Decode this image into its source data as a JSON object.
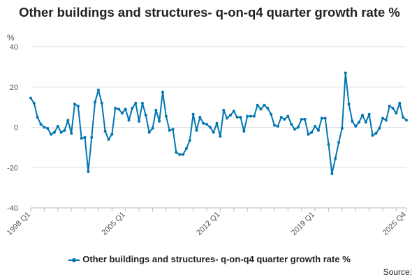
{
  "chart_data": {
    "type": "line",
    "title": "Other buildings and structures- q-on-q4 quarter growth rate %",
    "ylabel": "%",
    "xlabel": "",
    "ylim": [
      -40,
      40
    ],
    "yticks": [
      40,
      20,
      0,
      -20,
      -40
    ],
    "x_labels": [
      "1998 Q1",
      "2005 Q1",
      "2012 Q1",
      "2019 Q1",
      "2025 Q4"
    ],
    "grid": true,
    "legend_position": "bottom",
    "color": "#0076b1",
    "series": [
      {
        "name": "Other buildings and structures- q-on-q4 quarter growth rate %",
        "start": "1998 Q1",
        "values": [
          14.5,
          12,
          5,
          1.5,
          0,
          -0.5,
          -3.5,
          -2.5,
          0.5,
          -2.5,
          -1.5,
          3.5,
          -3,
          11.5,
          10.5,
          -5.5,
          -5,
          -22,
          -5,
          12.5,
          18.5,
          12,
          -2,
          -6,
          -3.5,
          9.5,
          9,
          7,
          9,
          3.5,
          9.5,
          12,
          3,
          12,
          6,
          -2.5,
          -0.5,
          8.5,
          3,
          17.5,
          5.5,
          -1.5,
          -1,
          -12.5,
          -13.5,
          -13.5,
          -10.5,
          -6.5,
          6.5,
          -1.5,
          5,
          2,
          1.5,
          0,
          -2.5,
          2,
          -4.5,
          8.5,
          4.5,
          6,
          8,
          5,
          5,
          -2,
          5.5,
          5.5,
          5.5,
          11,
          9,
          11,
          9.5,
          6.5,
          1,
          0.5,
          5,
          4,
          5.5,
          1.5,
          -1,
          0,
          4,
          4,
          -3.5,
          -2.5,
          0.5,
          -1.5,
          4.5,
          4.5,
          -8.5,
          -23,
          -15.5,
          -7.5,
          -0.5,
          27,
          11.5,
          3,
          0.5,
          2.5,
          6,
          2.5,
          6.5,
          -4,
          -3,
          -0.5,
          4.5,
          3.5,
          10.5,
          9.5,
          7,
          12,
          5,
          3.5
        ]
      }
    ]
  },
  "legend": {
    "label": "Other buildings and structures- q-on-q4 quarter growth rate %"
  },
  "source_label": "Source:"
}
